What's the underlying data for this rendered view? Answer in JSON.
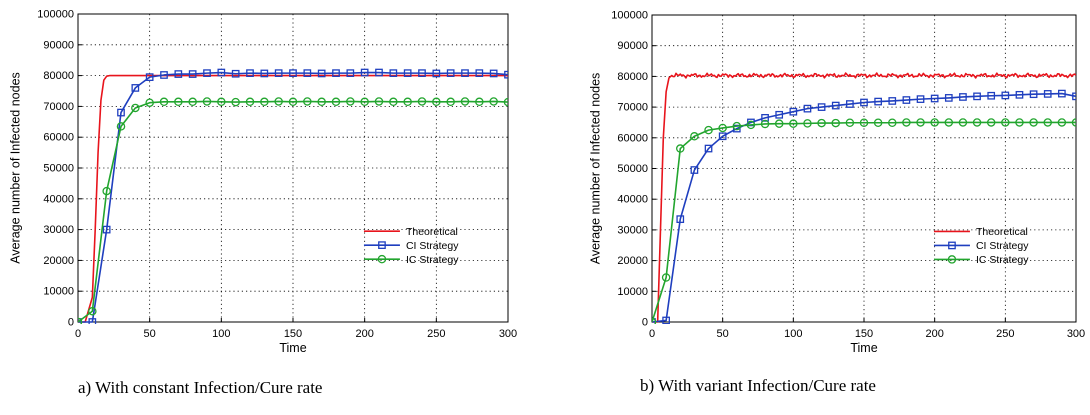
{
  "colors": {
    "Theoretical": "#e8141c",
    "CI Strategy": "#1f3fbf",
    "IC Strategy": "#22a52e"
  },
  "chart_data": [
    {
      "type": "line",
      "caption": "a) With constant Infection/Cure rate",
      "xlabel": "Time",
      "ylabel": "Average number of Infected nodes",
      "xlim": [
        0,
        300
      ],
      "ylim": [
        0,
        100000
      ],
      "xticks": [
        "0",
        "50",
        "100",
        "150",
        "200",
        "250",
        "300"
      ],
      "yticks": [
        "0",
        "10000",
        "20000",
        "30000",
        "40000",
        "50000",
        "60000",
        "70000",
        "80000",
        "90000",
        "100000"
      ],
      "grid": true,
      "legend_position": "bottom-right",
      "series": [
        {
          "name": "Theoretical",
          "marker": "none",
          "noise": false,
          "x": [
            0,
            5,
            10,
            12,
            14,
            16,
            18,
            20,
            22,
            25,
            30,
            300
          ],
          "y": [
            0,
            0,
            8000,
            30000,
            55000,
            72000,
            78500,
            79800,
            80000,
            80000,
            80000,
            80000
          ]
        },
        {
          "name": "CI Strategy",
          "marker": "square",
          "x": [
            0,
            10,
            20,
            30,
            40,
            50,
            60,
            70,
            80,
            90,
            100,
            110,
            120,
            130,
            140,
            150,
            160,
            170,
            180,
            190,
            200,
            210,
            220,
            230,
            240,
            250,
            260,
            270,
            280,
            290,
            300
          ],
          "y": [
            0,
            0,
            30000,
            68000,
            76000,
            79500,
            80200,
            80500,
            80500,
            80800,
            81000,
            80600,
            80800,
            80700,
            80800,
            80800,
            80800,
            80700,
            80800,
            80800,
            81000,
            81000,
            80800,
            80800,
            80800,
            80700,
            80800,
            80800,
            80800,
            80700,
            80300
          ]
        },
        {
          "name": "IC Strategy",
          "marker": "circle",
          "x": [
            0,
            10,
            20,
            30,
            40,
            50,
            60,
            70,
            80,
            90,
            100,
            110,
            120,
            130,
            140,
            150,
            160,
            170,
            180,
            190,
            200,
            210,
            220,
            230,
            240,
            250,
            260,
            270,
            280,
            290,
            300
          ],
          "y": [
            0,
            3500,
            42500,
            63500,
            69500,
            71200,
            71500,
            71500,
            71500,
            71600,
            71500,
            71400,
            71500,
            71500,
            71600,
            71500,
            71600,
            71500,
            71500,
            71600,
            71500,
            71600,
            71500,
            71500,
            71600,
            71500,
            71500,
            71600,
            71500,
            71600,
            71400
          ]
        }
      ]
    },
    {
      "type": "line",
      "caption": "b) With variant Infection/Cure rate",
      "xlabel": "Time",
      "ylabel": "Average number of Infected nodes",
      "xlim": [
        0,
        300
      ],
      "ylim": [
        0,
        100000
      ],
      "xticks": [
        "0",
        "50",
        "100",
        "150",
        "200",
        "250",
        "300"
      ],
      "yticks": [
        "0",
        "10000",
        "20000",
        "30000",
        "40000",
        "50000",
        "60000",
        "70000",
        "80000",
        "90000",
        "100000"
      ],
      "grid": true,
      "legend_position": "bottom-right",
      "series": [
        {
          "name": "Theoretical",
          "marker": "none",
          "noise": true,
          "x": [
            0,
            4,
            6,
            8,
            10,
            12,
            14,
            300
          ],
          "y": [
            0,
            0,
            30000,
            60000,
            75000,
            79500,
            80300,
            80300
          ]
        },
        {
          "name": "CI Strategy",
          "marker": "square",
          "x": [
            0,
            10,
            20,
            30,
            40,
            50,
            60,
            70,
            80,
            90,
            100,
            110,
            120,
            130,
            140,
            150,
            160,
            170,
            180,
            190,
            200,
            210,
            220,
            230,
            240,
            250,
            260,
            270,
            280,
            290,
            300
          ],
          "y": [
            0,
            500,
            33500,
            49500,
            56500,
            60500,
            63000,
            65000,
            66500,
            67500,
            68500,
            69500,
            70000,
            70500,
            71000,
            71500,
            71800,
            72000,
            72300,
            72600,
            72800,
            73000,
            73300,
            73500,
            73700,
            73800,
            74000,
            74200,
            74300,
            74400,
            73500
          ]
        },
        {
          "name": "IC Strategy",
          "marker": "circle",
          "x": [
            0,
            10,
            20,
            30,
            40,
            50,
            60,
            70,
            80,
            90,
            100,
            110,
            120,
            130,
            140,
            150,
            160,
            170,
            180,
            190,
            200,
            210,
            220,
            230,
            240,
            250,
            260,
            270,
            280,
            290,
            300
          ],
          "y": [
            0,
            14500,
            56500,
            60500,
            62500,
            63200,
            63800,
            64200,
            64500,
            64600,
            64600,
            64700,
            64800,
            64800,
            64900,
            64900,
            64900,
            64900,
            65000,
            65000,
            65000,
            65000,
            65000,
            65000,
            65000,
            65000,
            65000,
            65000,
            65000,
            65000,
            65000
          ]
        }
      ]
    }
  ]
}
